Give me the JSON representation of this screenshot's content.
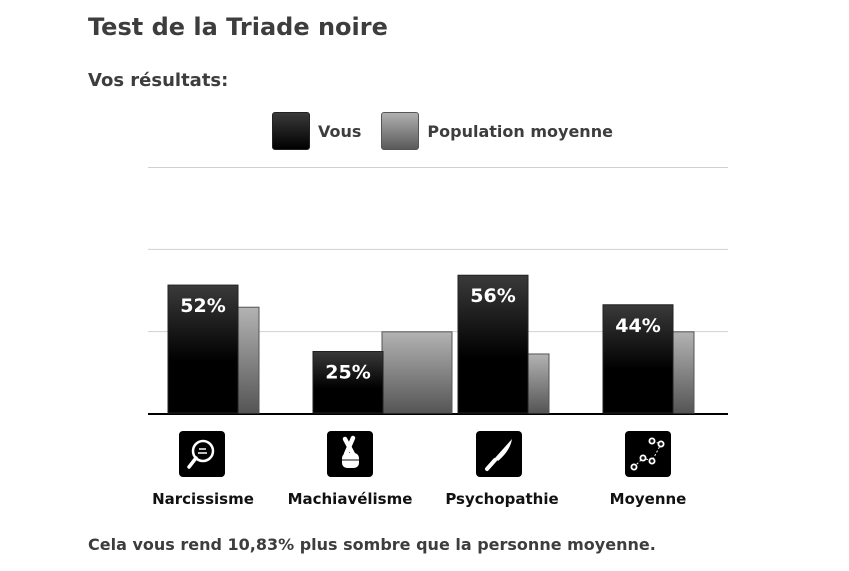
{
  "page": {
    "title": "Test de la Triade noire",
    "subtitle": "Vos résultats:",
    "footer": "Cela vous rend 10,83% plus sombre que la personne moyenne."
  },
  "legend": [
    {
      "label": "Vous",
      "key": "you"
    },
    {
      "label": "Population moyenne",
      "key": "pop"
    }
  ],
  "chart_data": {
    "type": "bar",
    "categories": [
      "Narcissisme",
      "Machiavélisme",
      "Psychopathie",
      "Moyenne"
    ],
    "category_icons": [
      "hand-mirror-icon",
      "crossed-fingers-icon",
      "knife-icon",
      "scatter-line-icon"
    ],
    "series": [
      {
        "name": "Vous",
        "values": [
          52,
          25,
          56,
          44
        ],
        "labels": [
          "52%",
          "25%",
          "56%",
          "44%"
        ],
        "color": "#000000"
      },
      {
        "name": "Population moyenne",
        "values": [
          43,
          33,
          24,
          33
        ],
        "color": "#7a7a7a"
      }
    ],
    "ylim": [
      0,
      100
    ],
    "grid": true,
    "legend_position": "top-center",
    "colors": {
      "you_top": "#3a3a3a",
      "you_bottom": "#000000",
      "pop_top": "#b3b3b3",
      "pop_bottom": "#555555",
      "grid": "#d0d0d0",
      "axis": "#000000"
    }
  }
}
